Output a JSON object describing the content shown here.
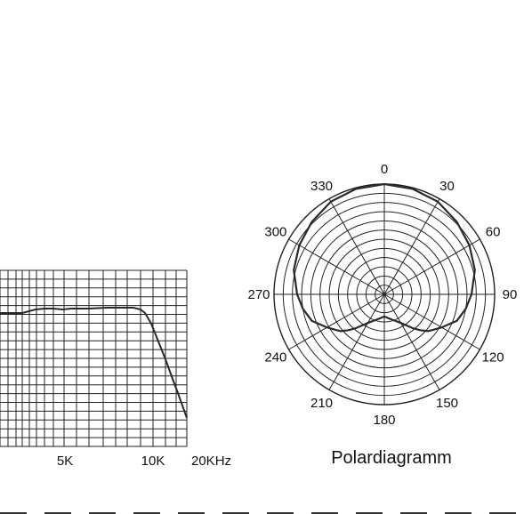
{
  "colors": {
    "ink": "#1a1a1a",
    "grid": "#222222",
    "curve": "#2a2a2a"
  },
  "chart_data": [
    {
      "type": "line",
      "title": "",
      "xlabel": "",
      "ylabel": "",
      "x_tick_labels": [
        "5K",
        "10K",
        "20KHz"
      ],
      "grid": true,
      "series": [
        {
          "name": "",
          "points": [
            [
              0,
              48
            ],
            [
              25,
              48
            ],
            [
              40,
              44
            ],
            [
              50,
              43
            ],
            [
              60,
              43
            ],
            [
              70,
              44
            ],
            [
              80,
              43
            ],
            [
              100,
              43
            ],
            [
              120,
              42
            ],
            [
              140,
              42
            ],
            [
              150,
              42
            ],
            [
              158,
              44
            ],
            [
              163,
              48
            ],
            [
              170,
              60
            ],
            [
              178,
              80
            ],
            [
              186,
              100
            ],
            [
              194,
              122
            ],
            [
              200,
              138
            ],
            [
              205,
              152
            ],
            [
              210,
              166
            ]
          ]
        }
      ]
    },
    {
      "type": "polar",
      "title": "Polardiagramm",
      "angle_labels": [
        "0",
        "30",
        "60",
        "90",
        "120",
        "150",
        "180",
        "210",
        "240",
        "270",
        "300",
        "330"
      ],
      "grid": true,
      "series": [
        {
          "name": "",
          "angles_deg": [
            0,
            15,
            30,
            45,
            60,
            75,
            90,
            100,
            110,
            120,
            130,
            135,
            140,
            150,
            160,
            170,
            180
          ],
          "values": [
            1.0,
            0.99,
            0.97,
            0.93,
            0.89,
            0.85,
            0.79,
            0.75,
            0.7,
            0.6,
            0.52,
            0.46,
            0.4,
            0.3,
            0.25,
            0.22,
            0.2
          ]
        }
      ]
    }
  ]
}
